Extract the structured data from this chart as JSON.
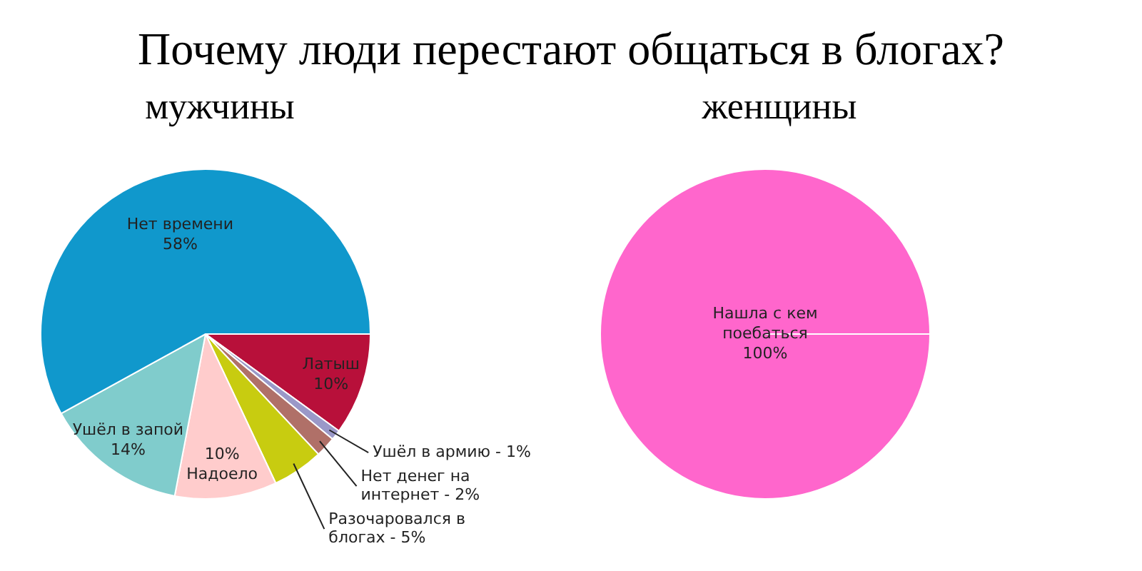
{
  "chart_data": [
    {
      "type": "pie",
      "title": "Почему люди перестают общаться в блогах?",
      "subtitle": "мужчины",
      "categories": [
        "Латыш",
        "Ушёл в армию -",
        "Нет денег на интернет -",
        "Разочаровался в блогах -",
        "Надоело",
        "Ушёл в запой",
        "Нет времени"
      ],
      "values": [
        10,
        1,
        2,
        5,
        10,
        14,
        58
      ],
      "colors": [
        "#b8103a",
        "#9a98c8",
        "#b07068",
        "#c8cc10",
        "#ffcccc",
        "#80cccc",
        "#1098cc"
      ],
      "value_labels": [
        "10%",
        "1%",
        "2%",
        "5%",
        "10%",
        "14%",
        "58%"
      ]
    },
    {
      "type": "pie",
      "subtitle": "женщины",
      "categories": [
        "Нашла с кем поебаться"
      ],
      "values": [
        100
      ],
      "colors": [
        "#ff66cc"
      ],
      "value_labels": [
        "100%"
      ]
    }
  ]
}
